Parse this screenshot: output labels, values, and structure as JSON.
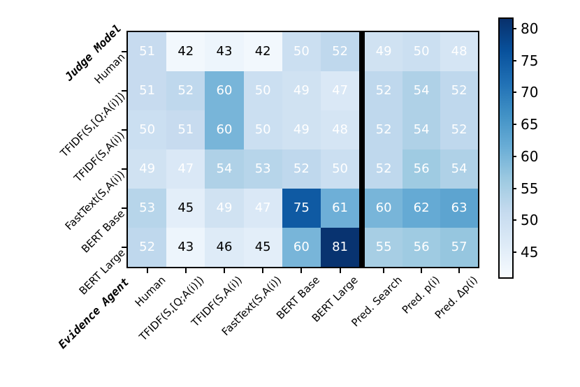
{
  "chart_data": {
    "type": "heatmap",
    "y_axis_label": "Judge Model",
    "x_axis_label": "Evidence Agent",
    "rows": [
      "Human",
      "TFIDF(S,[Q;A(i)])",
      "TFIDF(S,A(i))",
      "FastText(S,A(i))",
      "BERT Base",
      "BERT Large"
    ],
    "columns": [
      "Human",
      "TFIDF(S,[Q;A(i)])",
      "TFIDF(S,A(i))",
      "FastText(S,A(i))",
      "BERT Base",
      "BERT Large",
      "Pred. Search",
      "Pred. p(i)",
      "Pred. Δp(i)"
    ],
    "values": [
      [
        51,
        42,
        43,
        42,
        50,
        52,
        49,
        50,
        48
      ],
      [
        51,
        52,
        60,
        50,
        49,
        47,
        52,
        54,
        52
      ],
      [
        50,
        51,
        60,
        50,
        49,
        48,
        52,
        54,
        52
      ],
      [
        49,
        47,
        54,
        53,
        52,
        50,
        52,
        56,
        54
      ],
      [
        53,
        45,
        49,
        47,
        75,
        61,
        60,
        62,
        63
      ],
      [
        52,
        43,
        46,
        45,
        60,
        81,
        55,
        56,
        57
      ]
    ],
    "separator_after_column": 6,
    "annot_black_text_max": 46,
    "colorbar": {
      "tick_labels_top_to_bottom": [
        "80",
        "75",
        "70",
        "65",
        "60",
        "55",
        "50",
        "45"
      ],
      "tick_values": [
        80,
        75,
        70,
        65,
        60,
        55,
        50,
        45
      ],
      "vmin": 41,
      "vmax": 81.5,
      "colormap": "Blues",
      "gradient_stops_low_to_high": [
        "#f7fbff",
        "#deebf7",
        "#c6dbef",
        "#9ecae1",
        "#6baed6",
        "#4292c6",
        "#2171b5",
        "#08519c",
        "#08306b"
      ]
    }
  }
}
